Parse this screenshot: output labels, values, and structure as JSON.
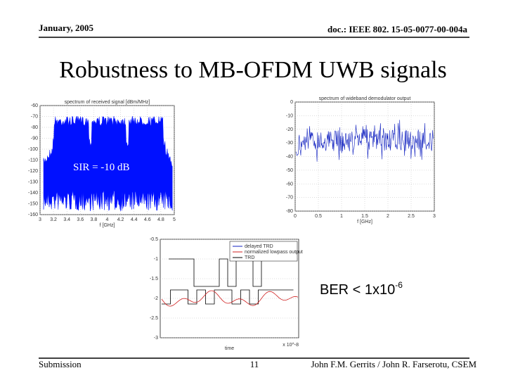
{
  "header": {
    "date": "January, 2005",
    "doc": "doc.: IEEE 802. 15-05-0077-00-004a"
  },
  "title": "Robustness to MB-OFDM UWB signals",
  "plots": [
    {
      "title": "spectrum of received signal [dBm/MHz]",
      "xlabel": "f [GHz]",
      "yticks": [
        "-60",
        "-70",
        "-80",
        "-90",
        "-100",
        "-110",
        "-120",
        "-130",
        "-140",
        "-150",
        "-160"
      ],
      "xticks": [
        "3",
        "3.2",
        "3.4",
        "3.6",
        "3.8",
        "4",
        "4.2",
        "4.4",
        "4.6",
        "4.8",
        "5"
      ]
    },
    {
      "title": "spectrum of wideband demodulator output",
      "xlabel": "f [GHz]",
      "yticks": [
        "0",
        "-10",
        "-20",
        "-30",
        "-40",
        "-50",
        "-60",
        "-70",
        "-80"
      ],
      "xticks": [
        "0",
        "0.5",
        "1",
        "1.5",
        "2",
        "2.5",
        "3"
      ]
    },
    {
      "xlabel": "time",
      "xscale": "x 10^-8",
      "yticks": [
        "-0.5",
        "-1",
        "-1.5",
        "-2",
        "-2.5",
        "-3"
      ],
      "legend": [
        "delayed TRD",
        "normalized lowpass output",
        "TRD"
      ]
    }
  ],
  "annotations": {
    "sir": "SIR = -10 dB",
    "ber": "BER < 1x10",
    "ber_exponent": "-6"
  },
  "footer": {
    "left": "Submission",
    "page": "11",
    "right": "John F.M. Gerrits / John R. Farserotu, CSEM"
  }
}
